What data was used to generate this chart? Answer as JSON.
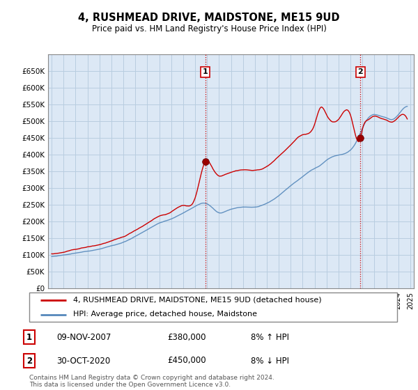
{
  "title": "4, RUSHMEAD DRIVE, MAIDSTONE, ME15 9UD",
  "subtitle": "Price paid vs. HM Land Registry's House Price Index (HPI)",
  "footer": "Contains HM Land Registry data © Crown copyright and database right 2024.\nThis data is licensed under the Open Government Licence v3.0.",
  "legend_line1": "4, RUSHMEAD DRIVE, MAIDSTONE, ME15 9UD (detached house)",
  "legend_line2": "HPI: Average price, detached house, Maidstone",
  "sale1_label": "1",
  "sale1_date": "09-NOV-2007",
  "sale1_price": "£380,000",
  "sale1_hpi": "8% ↑ HPI",
  "sale2_label": "2",
  "sale2_date": "30-OCT-2020",
  "sale2_price": "£450,000",
  "sale2_hpi": "8% ↓ HPI",
  "ylim": [
    0,
    700000
  ],
  "yticks": [
    0,
    50000,
    100000,
    150000,
    200000,
    250000,
    300000,
    350000,
    400000,
    450000,
    500000,
    550000,
    600000,
    650000
  ],
  "bg_color": "#dce8f5",
  "grid_color": "#b8cde0",
  "line_color_red": "#cc0000",
  "line_color_blue": "#5588bb",
  "sale1_year": 2007.86,
  "sale2_year": 2020.83,
  "sale1_price_val": 380000,
  "sale2_price_val": 450000,
  "xmin": 1994.7,
  "xmax": 2025.3
}
